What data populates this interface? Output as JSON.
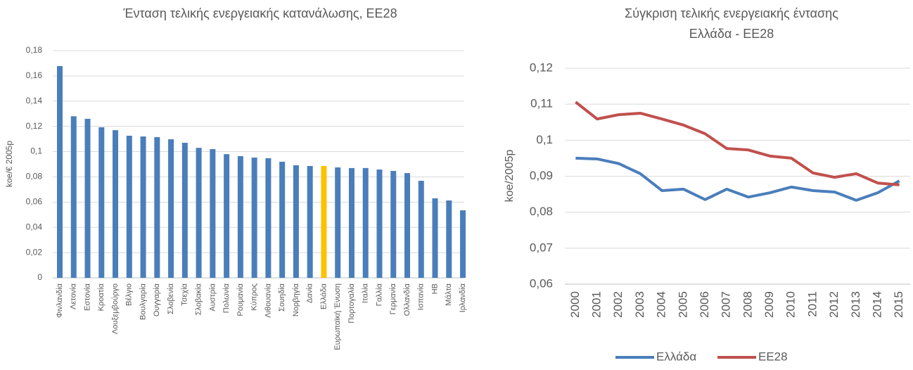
{
  "chart_data": [
    {
      "type": "bar",
      "title": "Ένταση τελικής ενεργειακής κατανάλωσης, ΕΕ28",
      "ylabel": "koe/€ 2005p",
      "categories": [
        "Φινλανδία",
        "Λετονία",
        "Εστονία",
        "Κροατία",
        "Λουξεμβούργο",
        "Βέλγιο",
        "Βουλγαρία",
        "Ουγγαρία",
        "Σλοβενία",
        "Τσεχία",
        "Σλοβακία",
        "Αυστρία",
        "Πολωνία",
        "Ρουμανία",
        "Κύπρος",
        "Λιθουανία",
        "Σουηδία",
        "Νορβηγία",
        "Δανία",
        "Ελλάδα",
        "Ευρωπαϊκή Ένωση",
        "Πορτογαλία",
        "Ιταλία",
        "Γαλλία",
        "Γερμανία",
        "Ολλανδία",
        "Ισπανία",
        "ΗΒ",
        "Μάλτα",
        "Ιρλανδία"
      ],
      "values": [
        0.1678,
        0.128,
        0.126,
        0.1193,
        0.117,
        0.1126,
        0.112,
        0.1115,
        0.1098,
        0.107,
        0.103,
        0.102,
        0.098,
        0.0964,
        0.0953,
        0.0948,
        0.092,
        0.0892,
        0.0886,
        0.0886,
        0.0875,
        0.087,
        0.087,
        0.0858,
        0.0847,
        0.083,
        0.0769,
        0.063,
        0.0613,
        0.0535
      ],
      "colors": [
        "#4a7ebb",
        "#4a7ebb",
        "#4a7ebb",
        "#4a7ebb",
        "#4a7ebb",
        "#4a7ebb",
        "#4a7ebb",
        "#4a7ebb",
        "#4a7ebb",
        "#4a7ebb",
        "#4a7ebb",
        "#4a7ebb",
        "#4a7ebb",
        "#4a7ebb",
        "#4a7ebb",
        "#4a7ebb",
        "#4a7ebb",
        "#4a7ebb",
        "#4a7ebb",
        "#ffc000",
        "#4a7ebb",
        "#4a7ebb",
        "#4a7ebb",
        "#4a7ebb",
        "#4a7ebb",
        "#4a7ebb",
        "#4a7ebb",
        "#4a7ebb",
        "#4a7ebb",
        "#4a7ebb"
      ],
      "ylim": [
        0,
        0.18
      ],
      "yticks": [
        0,
        {
          "value": 0.02,
          "label": "0,02"
        },
        {
          "value": 0.04,
          "label": "0,04"
        },
        {
          "value": 0.06,
          "label": "0,06"
        },
        {
          "value": 0.08,
          "label": "0,08"
        },
        {
          "value": 0.1,
          "label": "0,1"
        },
        {
          "value": 0.12,
          "label": "0,12"
        },
        {
          "value": 0.14,
          "label": "0,14"
        },
        {
          "value": 0.16,
          "label": "0,16"
        },
        {
          "value": 0.18,
          "label": "0,18"
        }
      ],
      "grid": true
    },
    {
      "type": "line",
      "title": [
        "Σύγκριση τελικής ενεργειακής έντασης",
        "Ελλάδα - ΕΕ28"
      ],
      "ylabel": "koe/2005p",
      "categories": [
        "2000",
        "2001",
        "2002",
        "2003",
        "2004",
        "2005",
        "2006",
        "2007",
        "2008",
        "2009",
        "2010",
        "2011",
        "2012",
        "2013",
        "2014",
        "2015"
      ],
      "series": [
        {
          "name": "Ελλάδα",
          "color": "#4a7ebb",
          "values": [
            0.095,
            0.0948,
            0.0935,
            0.0907,
            0.086,
            0.0864,
            0.0835,
            0.0864,
            0.0842,
            0.0854,
            0.087,
            0.086,
            0.0856,
            0.0833,
            0.0854,
            0.0887
          ]
        },
        {
          "name": "ΕΕ28",
          "color": "#c0504d",
          "values": [
            0.1106,
            0.1059,
            0.1071,
            0.1075,
            0.1059,
            0.1042,
            0.1018,
            0.0977,
            0.0973,
            0.0956,
            0.095,
            0.0909,
            0.0897,
            0.0907,
            0.0881,
            0.0876
          ]
        }
      ],
      "ylim": [
        0.06,
        0.12
      ],
      "yticks": [
        {
          "value": 0.06,
          "label": "0,06"
        },
        {
          "value": 0.07,
          "label": "0,07"
        },
        {
          "value": 0.08,
          "label": "0,08"
        },
        {
          "value": 0.09,
          "label": "0,09"
        },
        {
          "value": 0.1,
          "label": "0,1"
        },
        {
          "value": 0.11,
          "label": "0,11"
        },
        {
          "value": 0.12,
          "label": "0,12"
        }
      ],
      "grid": true,
      "legend": "bottom"
    }
  ]
}
